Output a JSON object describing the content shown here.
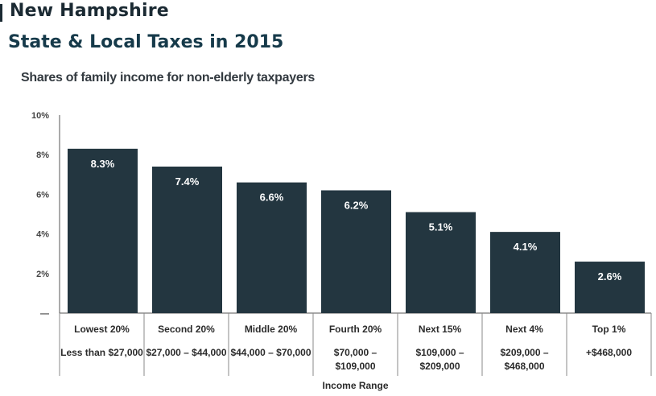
{
  "header": {
    "state": "New Hampshire",
    "title": "State & Local Taxes in 2015"
  },
  "chart_data": {
    "type": "bar",
    "title": "State & Local Taxes in 2015",
    "subtitle": "Shares of family income for non-elderly taxpayers",
    "xlabel": "Income Range",
    "ylabel": "",
    "ylim": [
      0,
      10
    ],
    "y_ticks": [
      "—",
      "2%",
      "4%",
      "6%",
      "8%",
      "10%"
    ],
    "y_tick_values": [
      0,
      2,
      4,
      6,
      8,
      10
    ],
    "grid": false,
    "categories": [
      "Lowest 20%",
      "Second 20%",
      "Middle 20%",
      "Fourth 20%",
      "Next 15%",
      "Next 4%",
      "Top 1%"
    ],
    "income_ranges": [
      [
        "Less than $27,000"
      ],
      [
        "$27,000 – $44,000"
      ],
      [
        "$44,000 – $70,000"
      ],
      [
        "$70,000 –",
        "$109,000"
      ],
      [
        "$109,000 –",
        "$209,000"
      ],
      [
        "$209,000 –",
        "$468,000"
      ],
      [
        "+$468,000"
      ]
    ],
    "values": [
      8.3,
      7.4,
      6.6,
      6.2,
      5.1,
      4.1,
      2.6
    ],
    "data_labels": [
      "8.3%",
      "7.4%",
      "6.6%",
      "6.2%",
      "5.1%",
      "4.1%",
      "2.6%"
    ],
    "colors": {
      "bar": "#233640",
      "bar_label": "#ffffff",
      "axis": "#555555",
      "text": "#2b2b2b"
    }
  }
}
